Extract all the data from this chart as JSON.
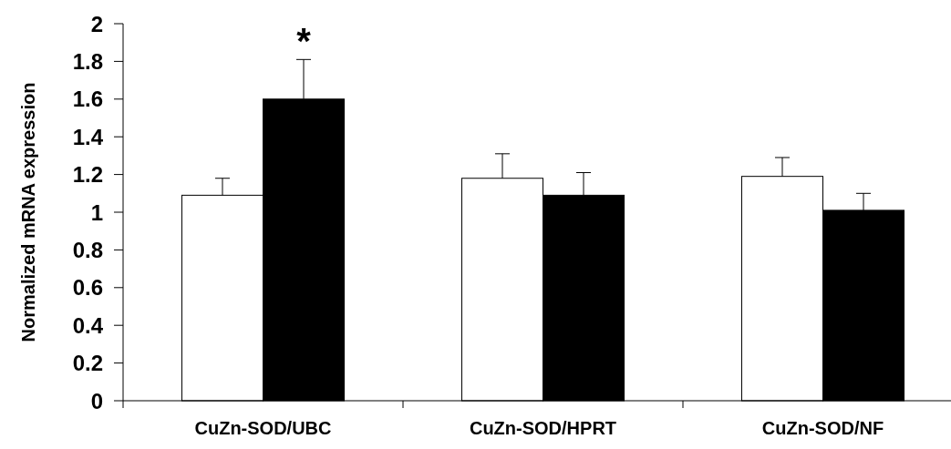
{
  "chart_data": {
    "type": "bar",
    "ylabel": "Normalized mRNA expression",
    "categories": [
      "CuZn-SOD/UBC",
      "CuZn-SOD/HPRT",
      "CuZn-SOD/NF"
    ],
    "series": [
      {
        "color": "#ffffff",
        "values": [
          1.09,
          1.18,
          1.19
        ],
        "errors": [
          0.09,
          0.13,
          0.1
        ]
      },
      {
        "color": "#000000",
        "values": [
          1.6,
          1.09,
          1.01
        ],
        "errors": [
          0.21,
          0.12,
          0.09
        ]
      }
    ],
    "ylim": [
      0,
      2
    ],
    "yticks": [
      0,
      0.2,
      0.4,
      0.6,
      0.8,
      1,
      1.2,
      1.4,
      1.6,
      1.8,
      2
    ],
    "grid": false,
    "annotations": [
      "*"
    ]
  }
}
